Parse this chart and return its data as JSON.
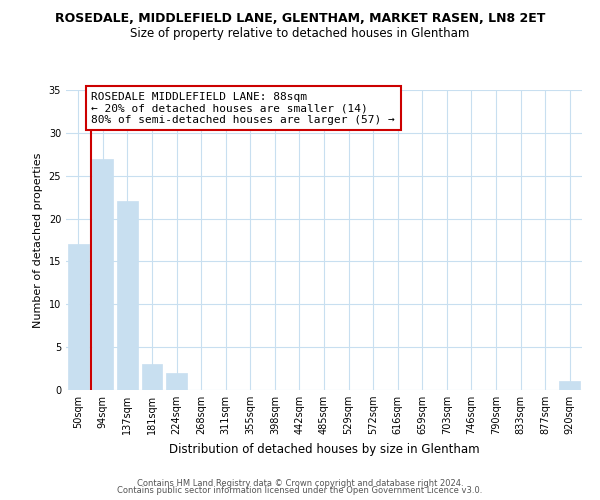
{
  "title": "ROSEDALE, MIDDLEFIELD LANE, GLENTHAM, MARKET RASEN, LN8 2ET",
  "subtitle": "Size of property relative to detached houses in Glentham",
  "xlabel": "Distribution of detached houses by size in Glentham",
  "ylabel": "Number of detached properties",
  "bar_color": "#c8dff0",
  "categories": [
    "50sqm",
    "94sqm",
    "137sqm",
    "181sqm",
    "224sqm",
    "268sqm",
    "311sqm",
    "355sqm",
    "398sqm",
    "442sqm",
    "485sqm",
    "529sqm",
    "572sqm",
    "616sqm",
    "659sqm",
    "703sqm",
    "746sqm",
    "790sqm",
    "833sqm",
    "877sqm",
    "920sqm"
  ],
  "values": [
    17,
    27,
    22,
    3,
    2,
    0,
    0,
    0,
    0,
    0,
    0,
    0,
    0,
    0,
    0,
    0,
    0,
    0,
    0,
    0,
    1
  ],
  "ylim": [
    0,
    35
  ],
  "yticks": [
    0,
    5,
    10,
    15,
    20,
    25,
    30,
    35
  ],
  "vline_color": "#cc0000",
  "annotation_text": "ROSEDALE MIDDLEFIELD LANE: 88sqm\n← 20% of detached houses are smaller (14)\n80% of semi-detached houses are larger (57) →",
  "annotation_box_color": "#ffffff",
  "annotation_box_edge": "#cc0000",
  "footer1": "Contains HM Land Registry data © Crown copyright and database right 2024.",
  "footer2": "Contains public sector information licensed under the Open Government Licence v3.0.",
  "bg_color": "#ffffff",
  "grid_color": "#c8dff0",
  "title_fontsize": 9,
  "subtitle_fontsize": 8.5,
  "ylabel_fontsize": 8,
  "xlabel_fontsize": 8.5,
  "tick_fontsize": 7,
  "footer_fontsize": 6,
  "annot_fontsize": 8
}
